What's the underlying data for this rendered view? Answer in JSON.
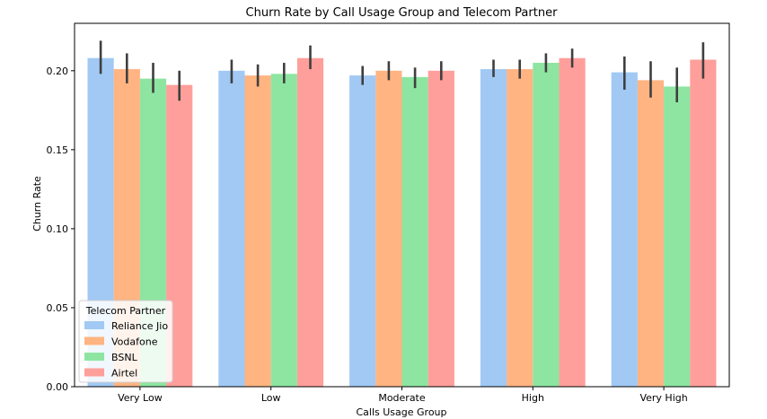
{
  "chart_data": {
    "type": "bar",
    "title": "Churn Rate by Call Usage Group and Telecom Partner",
    "xlabel": "Calls Usage Group",
    "ylabel": "Churn Rate",
    "categories": [
      "Very Low",
      "Low",
      "Moderate",
      "High",
      "Very High"
    ],
    "ylim": [
      0,
      0.23
    ],
    "yticks": [
      "0.00",
      "0.05",
      "0.10",
      "0.15",
      "0.20"
    ],
    "grid": false,
    "legend": {
      "title": "Telecom Partner",
      "placement": "lower-left"
    },
    "series": [
      {
        "name": "Reliance Jio",
        "color": "#a1c9f4",
        "values": [
          0.208,
          0.2,
          0.197,
          0.201,
          0.199
        ],
        "err_low": [
          0.198,
          0.192,
          0.191,
          0.196,
          0.188
        ],
        "err_high": [
          0.219,
          0.207,
          0.203,
          0.207,
          0.209
        ]
      },
      {
        "name": "Vodafone",
        "color": "#ffb482",
        "values": [
          0.201,
          0.197,
          0.2,
          0.201,
          0.194
        ],
        "err_low": [
          0.192,
          0.19,
          0.194,
          0.195,
          0.183
        ],
        "err_high": [
          0.211,
          0.204,
          0.206,
          0.207,
          0.206
        ]
      },
      {
        "name": "BSNL",
        "color": "#8de5a1",
        "values": [
          0.195,
          0.198,
          0.196,
          0.205,
          0.19
        ],
        "err_low": [
          0.186,
          0.192,
          0.189,
          0.199,
          0.18
        ],
        "err_high": [
          0.205,
          0.205,
          0.202,
          0.211,
          0.202
        ]
      },
      {
        "name": "Airtel",
        "color": "#ff9f9b",
        "values": [
          0.191,
          0.208,
          0.2,
          0.208,
          0.207
        ],
        "err_low": [
          0.181,
          0.201,
          0.194,
          0.202,
          0.195
        ],
        "err_high": [
          0.2,
          0.216,
          0.206,
          0.214,
          0.218
        ]
      }
    ]
  }
}
